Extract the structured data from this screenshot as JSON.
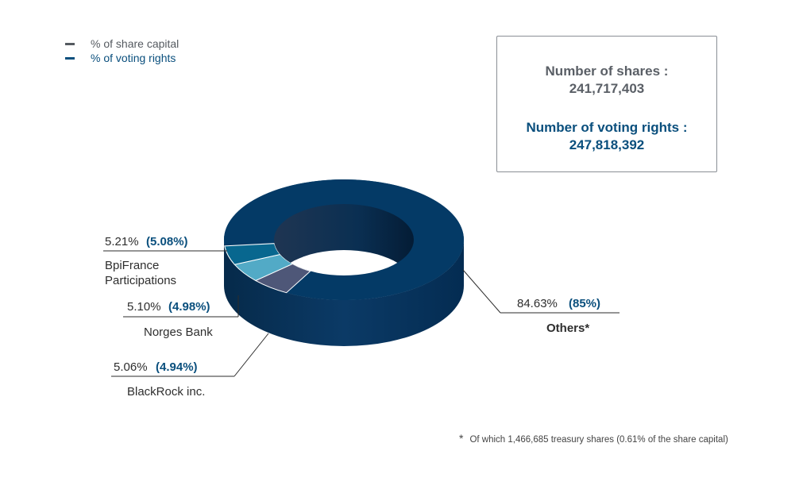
{
  "legend": {
    "share_label": "% of share capital",
    "voting_label": "% of voting rights",
    "share_color": "#555a60",
    "voting_color": "#0a4f7d"
  },
  "info": {
    "shares_title": "Number of shares :",
    "shares_value": "241,717,403",
    "voting_title": "Number of voting rights :",
    "voting_value": "247,818,392"
  },
  "footnote": {
    "star": "*",
    "text": "Of which 1,466,685 treasury shares (0.61% of the share capital)"
  },
  "chart_data": {
    "type": "pie",
    "style": "3d-donut",
    "categories": [
      "Others",
      "BpiFrance Participations",
      "Norges Bank",
      "BlackRock inc."
    ],
    "series": [
      {
        "name": "% of share capital",
        "values": [
          84.63,
          5.21,
          5.1,
          5.06
        ]
      },
      {
        "name": "% of voting rights",
        "values": [
          85,
          5.08,
          4.98,
          4.94
        ]
      }
    ],
    "labels": [
      {
        "name": "Others",
        "share": "84.63%",
        "voting": "(85%)",
        "suffix": "*"
      },
      {
        "name": "BpiFrance Participations",
        "name_lines": [
          "BpiFrance",
          "Participations"
        ],
        "share": "5.21%",
        "voting": "(5.08%)"
      },
      {
        "name": "Norges Bank",
        "share": "5.10%",
        "voting": "(4.98%)"
      },
      {
        "name": "BlackRock inc.",
        "share": "5.06%",
        "voting": "(4.94%)"
      }
    ],
    "colors": [
      "#043a66",
      "#4e5778",
      "#52aac6",
      "#08678f"
    ],
    "legend_position": "top-left"
  }
}
